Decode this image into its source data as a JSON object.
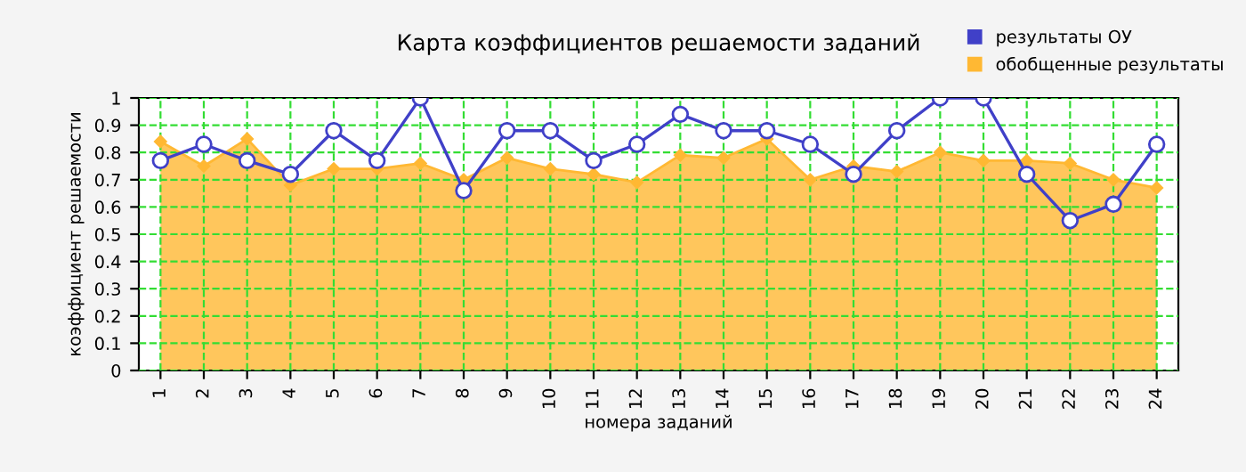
{
  "chart_data": {
    "type": "line",
    "title": "Карта коэффициентов решаемости заданий",
    "xlabel": "номера заданий",
    "ylabel": "коэффициент решаемости",
    "categories": [
      "1",
      "2",
      "3",
      "4",
      "5",
      "6",
      "7",
      "8",
      "9",
      "10",
      "11",
      "12",
      "13",
      "14",
      "15",
      "16",
      "17",
      "18",
      "19",
      "20",
      "21",
      "22",
      "23",
      "24"
    ],
    "series": [
      {
        "name": "обобщенные результаты",
        "type": "area",
        "color": "#ffb833",
        "marker": "diamond",
        "values": [
          0.84,
          0.75,
          0.85,
          0.68,
          0.74,
          0.74,
          0.76,
          0.7,
          0.78,
          0.74,
          0.72,
          0.69,
          0.79,
          0.78,
          0.85,
          0.7,
          0.75,
          0.73,
          0.8,
          0.77,
          0.77,
          0.76,
          0.7,
          0.67
        ]
      },
      {
        "name": "результаты ОУ",
        "color": "#4040c8",
        "marker": "circle",
        "values": [
          0.77,
          0.83,
          0.77,
          0.72,
          0.88,
          0.77,
          1.0,
          0.66,
          0.88,
          0.88,
          0.77,
          0.83,
          0.94,
          0.88,
          0.88,
          0.83,
          0.72,
          0.88,
          1.0,
          1.0,
          0.72,
          0.55,
          0.61,
          0.83
        ]
      }
    ],
    "ylim": [
      0,
      1
    ],
    "yticks": [
      0,
      0.1,
      0.2,
      0.3,
      0.4,
      0.5,
      0.6,
      0.7,
      0.8,
      0.9,
      1
    ],
    "grid": true,
    "legend": "top right"
  }
}
